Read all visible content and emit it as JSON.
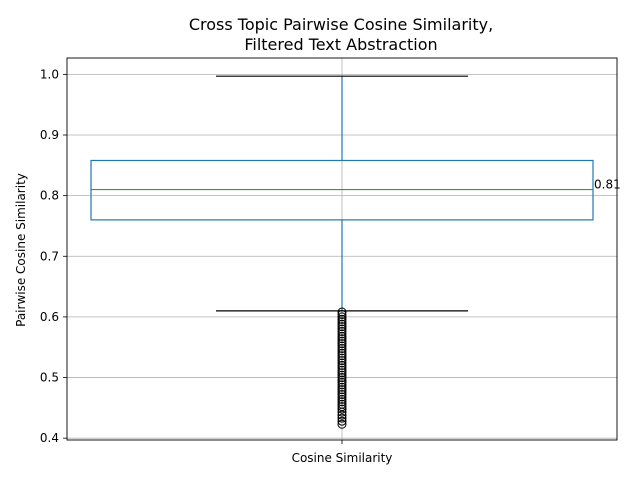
{
  "chart_data": {
    "type": "box",
    "title": [
      "Cross Topic Pairwise Cosine Similarity,",
      "Filtered Text Abstraction"
    ],
    "xlabel": "",
    "ylabel": "Pairwise Cosine Similarity",
    "categories": [
      "Cosine Similarity"
    ],
    "ylim": [
      0.397,
      1.027
    ],
    "yticks": [
      0.4,
      0.5,
      0.6,
      0.7,
      0.8,
      0.9,
      1.0
    ],
    "ytick_labels": [
      "0.4",
      "0.5",
      "0.6",
      "0.7",
      "0.8",
      "0.9",
      "1.0"
    ],
    "grid": true,
    "box": {
      "whisker_low": 0.61,
      "q1": 0.76,
      "median": 0.81,
      "q3": 0.858,
      "whisker_high": 0.997
    },
    "median_label": "0.81",
    "outliers": [
      0.423,
      0.428,
      0.433,
      0.438,
      0.443,
      0.448,
      0.452,
      0.456,
      0.46,
      0.464,
      0.468,
      0.472,
      0.476,
      0.48,
      0.484,
      0.488,
      0.492,
      0.496,
      0.5,
      0.504,
      0.508,
      0.512,
      0.516,
      0.52,
      0.524,
      0.528,
      0.532,
      0.536,
      0.54,
      0.544,
      0.548,
      0.552,
      0.556,
      0.56,
      0.564,
      0.568,
      0.572,
      0.576,
      0.58,
      0.584,
      0.588,
      0.592,
      0.596,
      0.6,
      0.604,
      0.608
    ],
    "colors": {
      "box": "#1f77b4",
      "median": "#2ca02c",
      "whisker_cap": "#000000",
      "grid": "#b0b0b0",
      "flier": "#000000"
    }
  }
}
